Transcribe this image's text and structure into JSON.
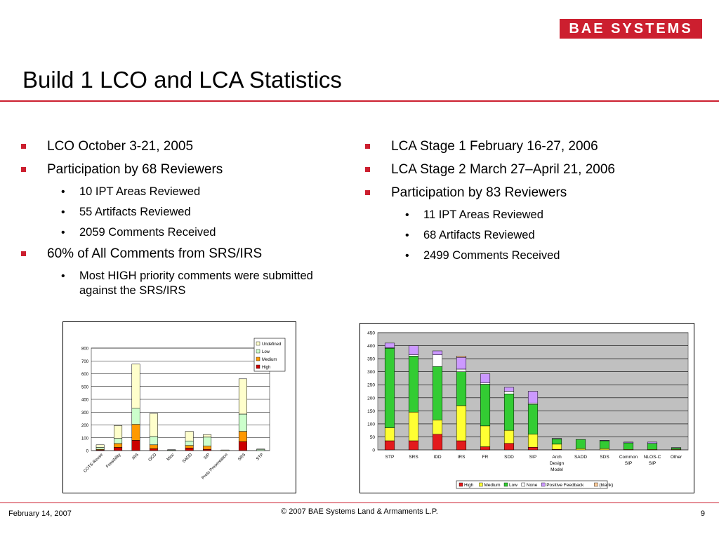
{
  "logo": "BAE SYSTEMS",
  "title": "Build 1 LCO and LCA Statistics",
  "left_bullets": [
    {
      "text": "LCO October 3-21, 2005",
      "sub": []
    },
    {
      "text": "Participation by 68 Reviewers",
      "sub": [
        "10 IPT Areas Reviewed",
        "55 Artifacts Reviewed",
        "2059 Comments Received"
      ]
    },
    {
      "text": "60% of All Comments from SRS/IRS",
      "sub": [
        "Most HIGH priority comments were submitted against the SRS/IRS"
      ]
    }
  ],
  "right_bullets": [
    {
      "text": "LCA Stage 1 February 16-27, 2006",
      "sub": []
    },
    {
      "text": "LCA Stage 2 March 27–April 21, 2006",
      "sub": []
    },
    {
      "text": "Participation by 83 Reviewers",
      "sub": [
        "11 IPT Areas Reviewed",
        "68 Artifacts Reviewed",
        "2499 Comments Received"
      ]
    }
  ],
  "footer": {
    "date": "February 14, 2007",
    "copyright": "© 2007 BAE Systems Land & Armaments L.P.",
    "page": "9"
  },
  "colors": {
    "brand": "#cc1f2f",
    "high": "#e31a1c",
    "medium": "#ffff33",
    "low": "#33cc33",
    "none": "#ffffff",
    "positive": "#cc99ff",
    "plot_bg": "#c0c0c0",
    "undefined_color": "#ffffcc",
    "low_lco": "#ccffcc",
    "medium_lco": "#ff9900",
    "high_lco": "#cc0000"
  },
  "chart_data": [
    {
      "type": "bar",
      "stacked": true,
      "title": "",
      "categories": [
        "COTS-Reuse",
        "Feasibility",
        "IRS",
        "OCD",
        "Misc",
        "SADD",
        "SIP",
        "Proto Presentation",
        "SRS",
        "STP"
      ],
      "series": [
        {
          "name": "High",
          "color": "#cc0000",
          "values": [
            5,
            25,
            80,
            15,
            0,
            20,
            10,
            0,
            70,
            0
          ]
        },
        {
          "name": "Medium",
          "color": "#ff9900",
          "values": [
            5,
            30,
            125,
            30,
            0,
            20,
            25,
            0,
            80,
            0
          ]
        },
        {
          "name": "Low",
          "color": "#ccffcc",
          "values": [
            15,
            40,
            125,
            65,
            5,
            35,
            70,
            0,
            135,
            10
          ]
        },
        {
          "name": "Undefined",
          "color": "#ffffcc",
          "values": [
            20,
            100,
            345,
            180,
            2,
            75,
            20,
            5,
            275,
            2
          ]
        }
      ],
      "ylim": [
        0,
        800
      ],
      "yticks": [
        0,
        100,
        200,
        300,
        400,
        500,
        600,
        700,
        800
      ],
      "legend": "top-right"
    },
    {
      "type": "bar",
      "stacked": true,
      "title": "",
      "categories": [
        "STP",
        "SRS",
        "IDD",
        "IRS",
        "FR",
        "SDD",
        "SIP",
        "Arch Design Model",
        "SADD",
        "SDS",
        "Common SIP",
        "NLOS-C SIP",
        "Other"
      ],
      "series": [
        {
          "name": "High",
          "color": "#e31a1c",
          "values": [
            35,
            35,
            60,
            35,
            12,
            25,
            10,
            2,
            0,
            0,
            0,
            0,
            0
          ]
        },
        {
          "name": "Medium",
          "color": "#ffff33",
          "values": [
            50,
            110,
            55,
            135,
            80,
            50,
            50,
            20,
            5,
            5,
            2,
            2,
            2
          ]
        },
        {
          "name": "Low",
          "color": "#33cc33",
          "values": [
            305,
            215,
            205,
            130,
            160,
            140,
            115,
            20,
            35,
            30,
            25,
            23,
            5
          ]
        },
        {
          "name": "None",
          "color": "#ffffff",
          "values": [
            2,
            5,
            45,
            10,
            5,
            10,
            5,
            0,
            0,
            0,
            0,
            0,
            0
          ]
        },
        {
          "name": "Positive Feedback",
          "color": "#cc99ff",
          "values": [
            18,
            35,
            15,
            45,
            35,
            15,
            45,
            2,
            0,
            2,
            3,
            5,
            2
          ]
        },
        {
          "name": "(blank)",
          "color": "#ffcc99",
          "values": [
            0,
            0,
            0,
            5,
            0,
            0,
            0,
            0,
            0,
            0,
            0,
            0,
            0
          ]
        }
      ],
      "ylim": [
        0,
        450
      ],
      "yticks": [
        0,
        50,
        100,
        150,
        200,
        250,
        300,
        350,
        400,
        450
      ],
      "legend": "bottom"
    }
  ]
}
